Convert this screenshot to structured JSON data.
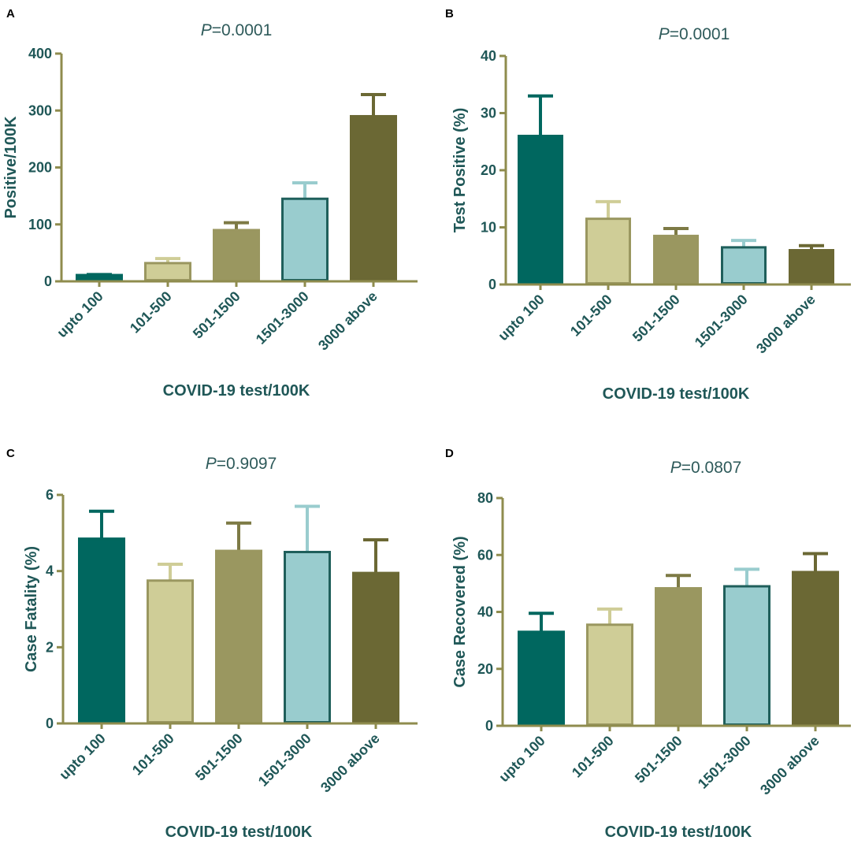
{
  "chart_data": [
    {
      "panel": "A",
      "type": "bar",
      "p_italic": "P",
      "p_value": "=0.0001",
      "xlabel": "COVID-19 test/100K",
      "ylabel": "Positive/100K",
      "categories": [
        "upto 100",
        "101-500",
        "501-1500",
        "1501-3000",
        "3000 above"
      ],
      "values": [
        11,
        32,
        90,
        145,
        290
      ],
      "errors": [
        1,
        8,
        13,
        28,
        38
      ],
      "ylim": [
        0,
        400
      ],
      "yticks": [
        "0",
        "100",
        "200",
        "300",
        "400"
      ]
    },
    {
      "panel": "B",
      "type": "bar",
      "p_italic": "P",
      "p_value": "=0.0001",
      "xlabel": "COVID-19 test/100K",
      "ylabel": "Test Positive (%)",
      "categories": [
        "upto 100",
        "101-500",
        "501-1500",
        "1501-3000",
        "3000 above"
      ],
      "values": [
        26,
        11.5,
        8.5,
        6.5,
        6
      ],
      "errors": [
        7,
        3,
        1.3,
        1.2,
        0.8
      ],
      "ylim": [
        0,
        40
      ],
      "yticks": [
        "0",
        "10",
        "20",
        "30",
        "40"
      ]
    },
    {
      "panel": "C",
      "type": "bar",
      "p_italic": "P",
      "p_value": "=0.9097",
      "xlabel": "COVID-19 test/100K",
      "ylabel": "Case Fatality (%)",
      "categories": [
        "upto 100",
        "101-500",
        "501-1500",
        "1501-3000",
        "3000 above"
      ],
      "values": [
        4.85,
        3.75,
        4.53,
        4.5,
        3.95
      ],
      "errors": [
        0.72,
        0.43,
        0.73,
        1.2,
        0.87
      ],
      "ylim": [
        0,
        6
      ],
      "yticks": [
        "0",
        "2",
        "4",
        "6"
      ]
    },
    {
      "panel": "D",
      "type": "bar",
      "p_italic": "P",
      "p_value": "=0.0807",
      "xlabel": "COVID-19 test/100K",
      "ylabel": "Case Recovered (%)",
      "categories": [
        "upto 100",
        "101-500",
        "501-1500",
        "1501-3000",
        "3000 above"
      ],
      "values": [
        33,
        35.5,
        48.3,
        49,
        54
      ],
      "errors": [
        6.5,
        5.5,
        4.5,
        6,
        6.5
      ],
      "ylim": [
        0,
        80
      ],
      "yticks": [
        "0",
        "20",
        "40",
        "60",
        "80"
      ]
    }
  ],
  "colors": {
    "axis": "#8f8c4e",
    "text": "#1f5757",
    "bar_fills": [
      "#00675f",
      "#cfcd97",
      "#9a9760",
      "#99ccce",
      "#6b6834"
    ],
    "bar_strokes": [
      "#00675f",
      "#9a9760",
      "#9a9760",
      "#1f5f5b",
      "#6b6834"
    ],
    "error_colors": [
      "#00675f",
      "#cfcd97",
      "#7d7a45",
      "#99ccce",
      "#6b6834"
    ]
  }
}
